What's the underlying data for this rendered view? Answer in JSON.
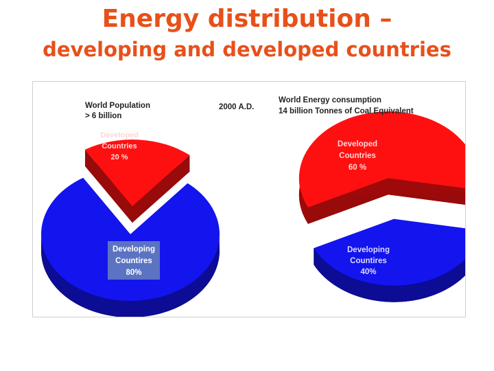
{
  "slide": {
    "title_line1": "Energy distribution –",
    "title_line2": "developing and developed countries"
  },
  "chart_data": [
    {
      "type": "pie",
      "title": "World Population",
      "subtitle": "> 6 billion",
      "annotation": "2000  A.D.",
      "slices": [
        {
          "label_line1": "Developed",
          "label_line2": "Countries",
          "value_label": "20 %",
          "value": 20,
          "color": "#ff1010",
          "exploded": true
        },
        {
          "label_line1": "Developing",
          "label_line2": "Countires",
          "value_label": "80%",
          "value": 80,
          "color": "#1414ee",
          "exploded": false
        }
      ]
    },
    {
      "type": "pie",
      "title": "World Energy consumption",
      "subtitle": "14 billion Tonnes of Coal Equivalent",
      "slices": [
        {
          "label_line1": "Developed",
          "label_line2": "Countries",
          "value_label": "60 %",
          "value": 60,
          "color": "#ff1010",
          "exploded": true
        },
        {
          "label_line1": "Developing",
          "label_line2": "Countires",
          "value_label": "40%",
          "value": 40,
          "color": "#1414ee",
          "exploded": true
        }
      ]
    }
  ]
}
